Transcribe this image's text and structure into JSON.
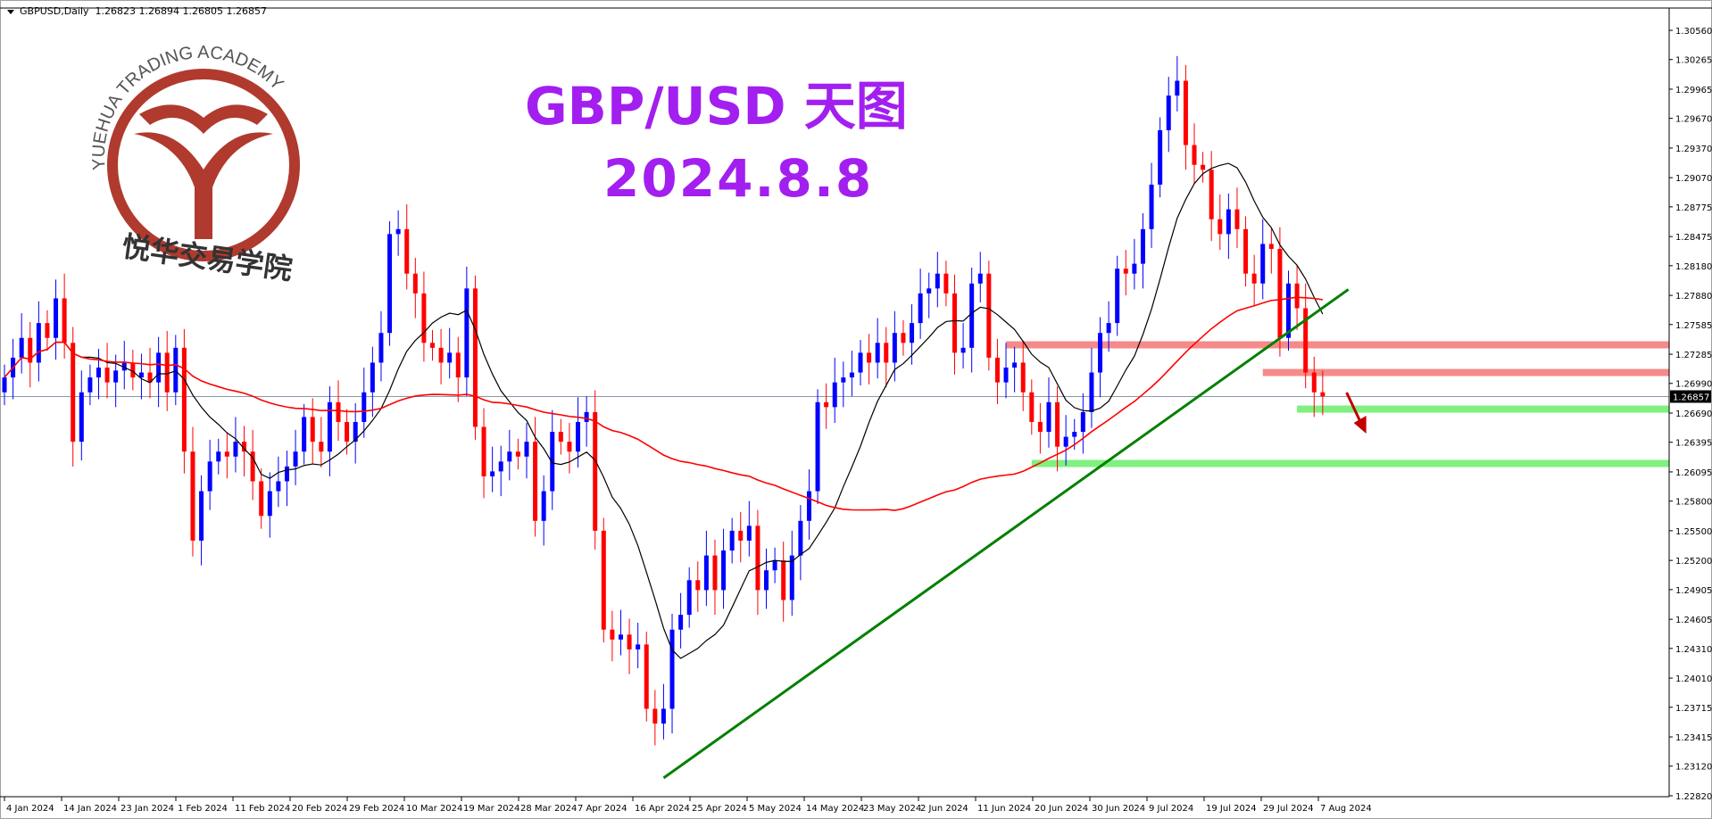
{
  "header": {
    "symbol": "GBPUSD,Daily",
    "ohlc_text": "1.26823 1.26894 1.26805 1.26857"
  },
  "title": {
    "line1": "GBP/USD 天图",
    "line2": "2024.8.8",
    "color": "#a21ff0"
  },
  "logo": {
    "text_en": "YUEHUA TRADING ACADEMY",
    "text_cn": "悦华交易学院",
    "color": "#b03a2e"
  },
  "colors": {
    "bull": "#0000ff",
    "bear": "#ff0000",
    "ma_fast": "#000000",
    "ma_slow": "#ff0000",
    "resistance": "#f58a8a",
    "support": "#80f080",
    "trendline": "#008000",
    "arrow": "#c00000"
  },
  "chart_data": {
    "type": "candlestick",
    "symbol": "GBPUSD",
    "timeframe": "Daily",
    "ylim": [
      1.2282,
      1.3056
    ],
    "current_price": "1.26857",
    "y_ticks": [
      "1.30560",
      "1.30265",
      "1.29965",
      "1.29670",
      "1.29370",
      "1.29070",
      "1.28775",
      "1.28475",
      "1.28180",
      "1.27880",
      "1.27585",
      "1.27285",
      "1.26990",
      "1.26690",
      "1.26395",
      "1.26095",
      "1.25800",
      "1.25500",
      "1.25200",
      "1.24905",
      "1.24605",
      "1.24310",
      "1.24010",
      "1.23715",
      "1.23415",
      "1.23120",
      "1.22820"
    ],
    "x_ticks": [
      "4 Jan 2024",
      "14 Jan 2024",
      "23 Jan 2024",
      "1 Feb 2024",
      "11 Feb 2024",
      "20 Feb 2024",
      "29 Feb 2024",
      "10 Mar 2024",
      "19 Mar 2024",
      "28 Mar 2024",
      "7 Apr 2024",
      "16 Apr 2024",
      "25 Apr 2024",
      "5 May 2024",
      "14 May 2024",
      "23 May 2024",
      "2 Jun 2024",
      "11 Jun 2024",
      "20 Jun 2024",
      "30 Jun 2024",
      "9 Jul 2024",
      "19 Jul 2024",
      "29 Jul 2024",
      "7 Aug 2024"
    ],
    "first_open": 1.269,
    "closes": [
      1.2705,
      1.2725,
      1.2745,
      1.272,
      1.276,
      1.2745,
      1.2785,
      1.274,
      1.264,
      1.269,
      1.2705,
      1.2715,
      1.27,
      1.2712,
      1.272,
      1.2705,
      1.271,
      1.27,
      1.273,
      1.269,
      1.2735,
      1.263,
      1.254,
      1.259,
      1.262,
      1.263,
      1.2625,
      1.264,
      1.263,
      1.26,
      1.2565,
      1.259,
      1.26,
      1.2615,
      1.263,
      1.2665,
      1.264,
      1.263,
      1.268,
      1.266,
      1.264,
      1.266,
      1.269,
      1.272,
      1.275,
      1.285,
      1.2855,
      1.281,
      1.279,
      1.274,
      1.2735,
      1.272,
      1.273,
      1.2705,
      1.2795,
      1.2655,
      1.2605,
      1.261,
      1.262,
      1.263,
      1.2625,
      1.264,
      1.256,
      1.259,
      1.265,
      1.264,
      1.263,
      1.266,
      1.267,
      1.255,
      1.245,
      1.244,
      1.2445,
      1.243,
      1.2435,
      1.237,
      1.2355,
      1.237,
      1.245,
      1.2465,
      1.25,
      1.249,
      1.2525,
      1.249,
      1.253,
      1.255,
      1.254,
      1.2555,
      1.249,
      1.251,
      1.252,
      1.248,
      1.2525,
      1.256,
      1.259,
      1.268,
      1.2675,
      1.27,
      1.2705,
      1.271,
      1.273,
      1.272,
      1.274,
      1.272,
      1.275,
      1.274,
      1.276,
      1.279,
      1.2795,
      1.281,
      1.279,
      1.273,
      1.2735,
      1.28,
      1.281,
      1.2725,
      1.27,
      1.2715,
      1.272,
      1.269,
      1.266,
      1.265,
      1.268,
      1.2635,
      1.2645,
      1.265,
      1.267,
      1.271,
      1.275,
      1.276,
      1.2815,
      1.281,
      1.282,
      1.2855,
      1.29,
      1.2955,
      1.299,
      1.3005,
      1.294,
      1.292,
      1.2915,
      1.2865,
      1.285,
      1.2875,
      1.2855,
      1.281,
      1.28,
      1.284,
      1.2835,
      1.2745,
      1.28,
      1.2775,
      1.271,
      1.269,
      1.2686
    ],
    "zones": [
      {
        "kind": "resistance",
        "price": 1.2738,
        "from_bar": 117
      },
      {
        "kind": "resistance",
        "price": 1.271,
        "from_bar": 147
      },
      {
        "kind": "support",
        "price": 1.2673,
        "from_bar": 151
      },
      {
        "kind": "support",
        "price": 1.2618,
        "from_bar": 120
      }
    ],
    "trendline": {
      "from_bar": 77,
      "from_price": 1.23,
      "to_bar": 157,
      "to_price": 1.2794
    },
    "arrow": {
      "direction": "down",
      "at_bar": 157
    }
  }
}
